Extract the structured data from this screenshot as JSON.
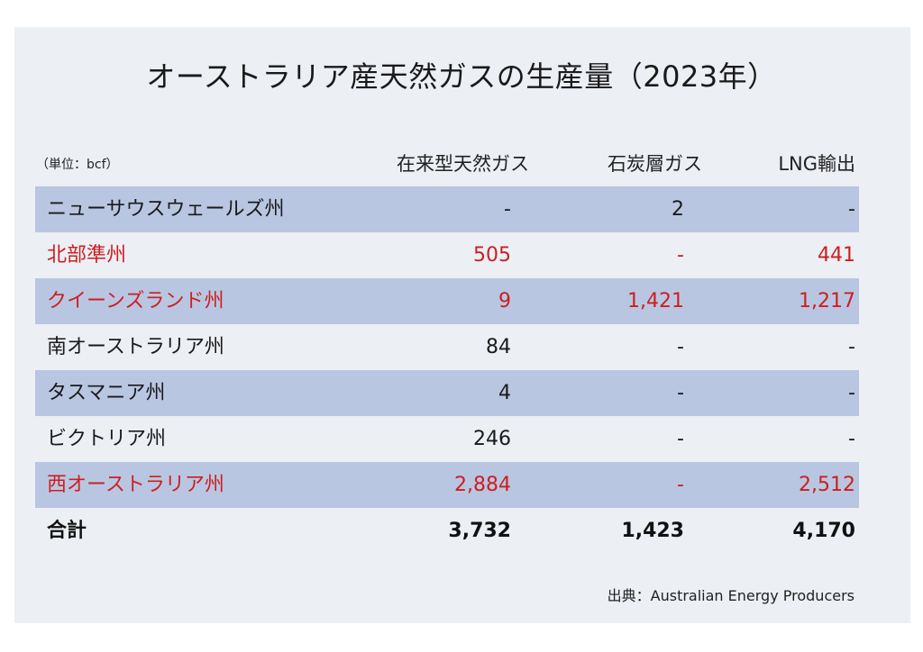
{
  "chart_data": {
    "type": "table",
    "title": "オーストラリア産天然ガスの生産量（2023年）",
    "unit_note": "（単位：bcf）",
    "columns": [
      "在来型天然ガス",
      "石炭層ガス",
      "LNG輸出"
    ],
    "rows": [
      {
        "name": "ニューサウスウェールズ州",
        "values": [
          "-",
          "2",
          "-"
        ],
        "highlight": false
      },
      {
        "name": "北部準州",
        "values": [
          "505",
          "-",
          "441"
        ],
        "highlight": true
      },
      {
        "name": "クイーンズランド州",
        "values": [
          "9",
          "1,421",
          "1,217"
        ],
        "highlight": true
      },
      {
        "name": "南オーストラリア州",
        "values": [
          "84",
          "-",
          "-"
        ],
        "highlight": false
      },
      {
        "name": "タスマニア州",
        "values": [
          "4",
          "-",
          "-"
        ],
        "highlight": false
      },
      {
        "name": "ビクトリア州",
        "values": [
          "246",
          "-",
          "-"
        ],
        "highlight": false
      },
      {
        "name": "西オーストラリア州",
        "values": [
          "2,884",
          "-",
          "2,512"
        ],
        "highlight": true
      }
    ],
    "total": {
      "name": "合計",
      "values": [
        "3,732",
        "1,423",
        "4,170"
      ]
    },
    "source": "出典：Australian Energy Producers",
    "colors": {
      "highlight_text": "#cc1f1f",
      "normal_text": "#1a1a1a",
      "band": "#b9c6e2",
      "panel": "#eceff4"
    }
  }
}
